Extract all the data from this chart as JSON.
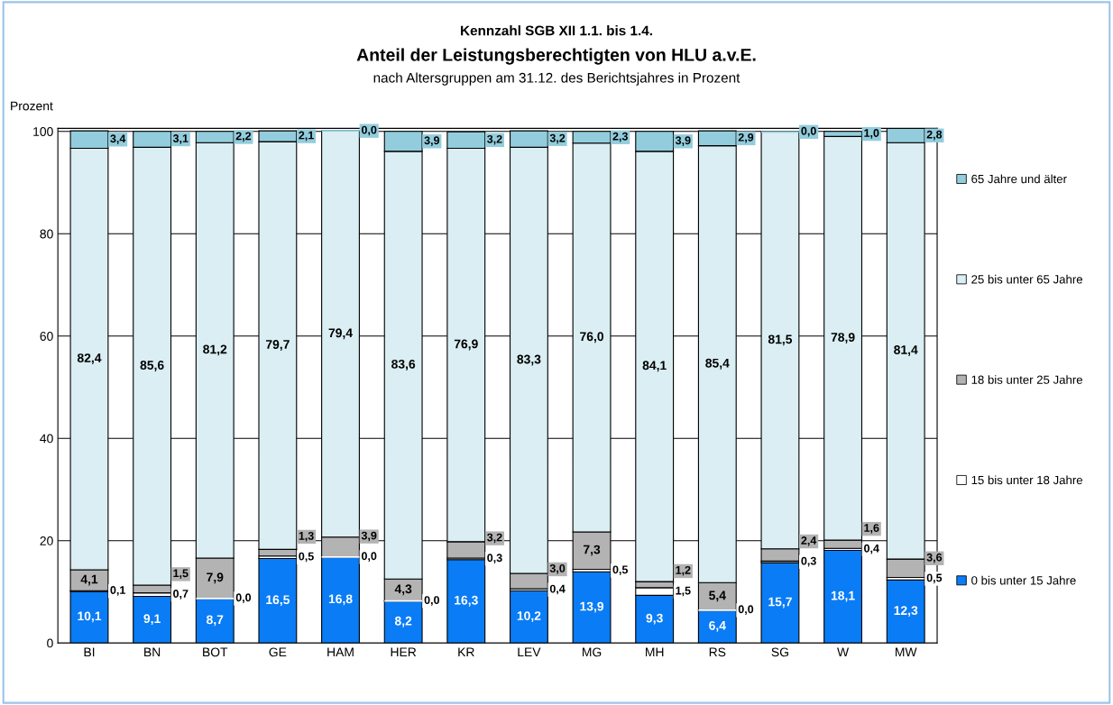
{
  "chart_data": {
    "type": "bar",
    "stacked": true,
    "annotations": [
      "Kennzahl SGB XII 1.1. bis 1.4."
    ],
    "title": "Anteil der Leistungsberechtigten von HLU a.v.E.",
    "subtitle": "nach Altersgruppen am 31.12. des Berichtsjahres in Prozent",
    "ylabel": "Prozent",
    "categories": [
      "BI",
      "BN",
      "BOT",
      "GE",
      "HAM",
      "HER",
      "KR",
      "LEV",
      "MG",
      "MH",
      "RS",
      "SG",
      "W",
      "MW"
    ],
    "ylim": [
      0,
      100.6
    ],
    "yticks": [
      0,
      20,
      40,
      60,
      80,
      100
    ],
    "grid": "y",
    "legend": "right",
    "series": [
      {
        "name": "0 bis unter 15 Jahre",
        "color": "#0a7cf5",
        "values": [
          10.1,
          9.1,
          8.7,
          16.5,
          16.8,
          8.2,
          16.3,
          10.2,
          13.9,
          9.3,
          6.4,
          15.7,
          18.1,
          12.3
        ],
        "value_labels": [
          "10,1",
          "9,1",
          "8,7",
          "16,5",
          "16,8",
          "8,2",
          "16,3",
          "10,2",
          "13,9",
          "9,3",
          "6,4",
          "15,7",
          "18,1",
          "12,3"
        ]
      },
      {
        "name": "15 bis unter 18 Jahre",
        "color": "#ffffff",
        "values": [
          0.1,
          0.7,
          0.0,
          0.5,
          0.0,
          0.0,
          0.3,
          0.4,
          0.5,
          1.5,
          0.0,
          0.3,
          0.4,
          0.5
        ],
        "value_labels": [
          "0,1",
          "0,7",
          "0,0",
          "0,5",
          "0,0",
          "0,0",
          "0,3",
          "0,4",
          "0,5",
          "1,5",
          "0,0",
          "0,3",
          "0,4",
          "0,5"
        ]
      },
      {
        "name": "18 bis unter 25 Jahre",
        "color": "#b3b3b3",
        "values": [
          4.1,
          1.5,
          7.9,
          1.3,
          3.9,
          4.3,
          3.2,
          3.0,
          7.3,
          1.2,
          5.4,
          2.4,
          1.6,
          3.6
        ],
        "value_labels": [
          "4,1",
          "1,5",
          "7,9",
          "1,3",
          "3,9",
          "4,3",
          "3,2",
          "3,0",
          "7,3",
          "1,2",
          "5,4",
          "2,4",
          "1,6",
          "3,6"
        ]
      },
      {
        "name": "25 bis unter 65 Jahre",
        "color": "#daeef3",
        "values": [
          82.4,
          85.6,
          81.2,
          79.7,
          79.4,
          83.6,
          76.9,
          83.3,
          76.0,
          84.1,
          85.4,
          81.5,
          78.9,
          81.4
        ],
        "value_labels": [
          "82,4",
          "85,6",
          "81,2",
          "79,7",
          "79,4",
          "83,6",
          "76,9",
          "83,3",
          "76,0",
          "84,1",
          "85,4",
          "81,5",
          "78,9",
          "81,4"
        ]
      },
      {
        "name": "65 Jahre und älter",
        "color": "#93cddd",
        "values": [
          3.4,
          3.1,
          2.2,
          2.1,
          0.0,
          3.9,
          3.2,
          3.2,
          2.3,
          3.9,
          2.9,
          0.0,
          1.0,
          2.8
        ],
        "value_labels": [
          "3,4",
          "3,1",
          "2,2",
          "2,1",
          "0,0",
          "3,9",
          "3,2",
          "3,2",
          "2,3",
          "3,9",
          "2,9",
          "0,0",
          "1,0",
          "2,8"
        ]
      }
    ]
  }
}
